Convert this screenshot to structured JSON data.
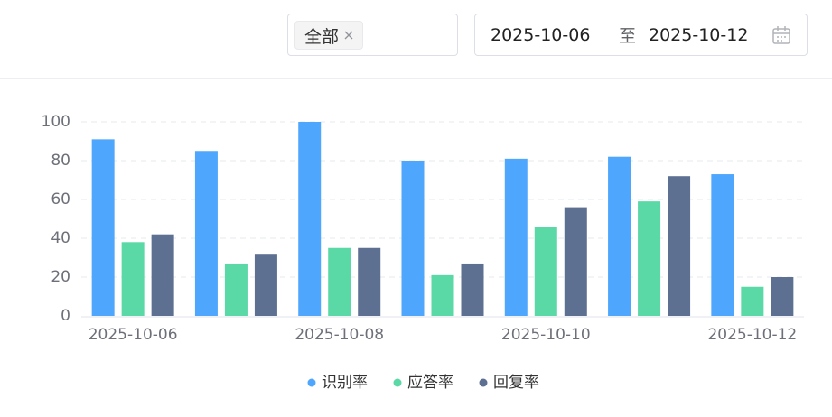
{
  "filters": {
    "tag": "全部",
    "start_date": "2025-10-06",
    "separator": "至",
    "end_date": "2025-10-12"
  },
  "chart_data": {
    "type": "bar",
    "categories": [
      "2025-10-06",
      null,
      "2025-10-08",
      null,
      "2025-10-10",
      null,
      "2025-10-12"
    ],
    "series": [
      {
        "name": "识别率",
        "color": "#4ea7fc",
        "values": [
          91,
          85,
          100,
          80,
          81,
          82,
          73
        ]
      },
      {
        "name": "应答率",
        "color": "#5ad8a6",
        "values": [
          38,
          27,
          35,
          21,
          46,
          59,
          15
        ]
      },
      {
        "name": "回复率",
        "color": "#5d7092",
        "values": [
          42,
          32,
          35,
          27,
          56,
          72,
          20
        ]
      }
    ],
    "ylim": [
      0,
      100
    ],
    "yticks": [
      0,
      20,
      40,
      60,
      80,
      100
    ],
    "grid": true
  }
}
